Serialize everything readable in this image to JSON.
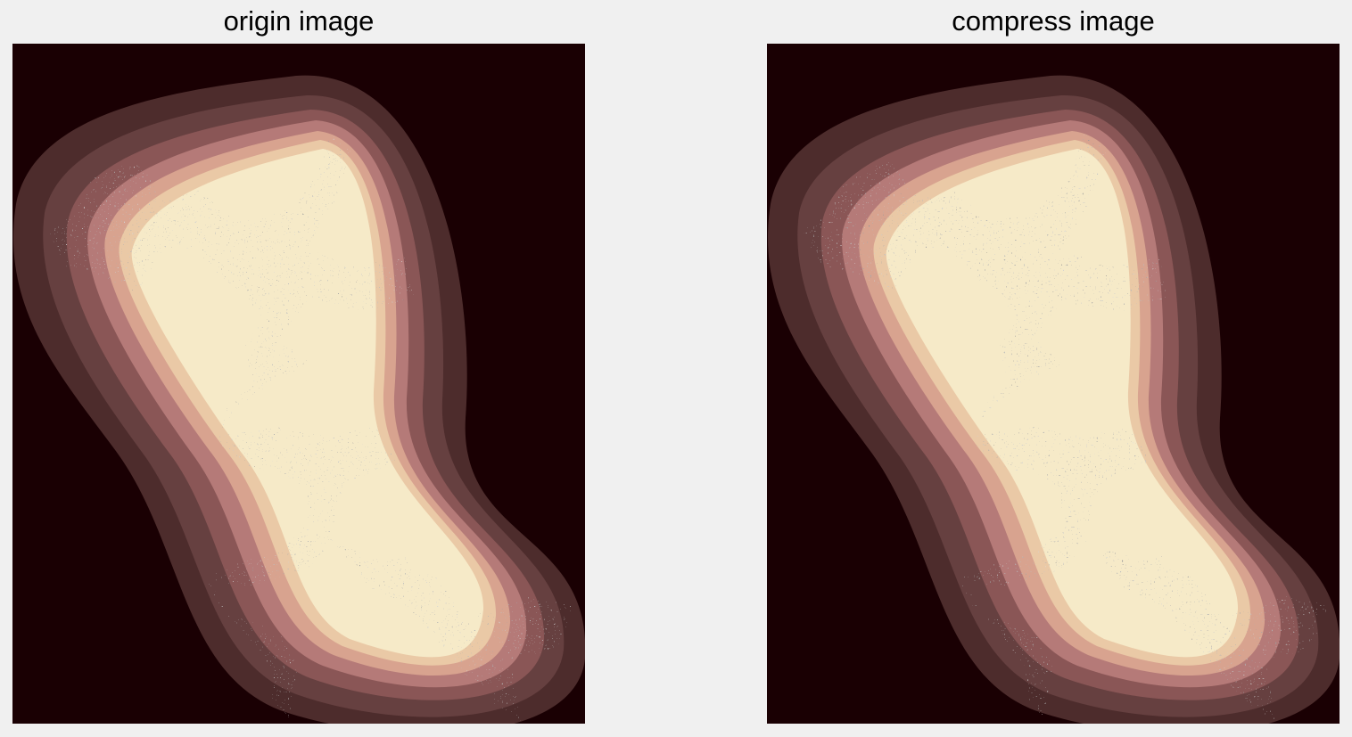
{
  "figure": {
    "panels": [
      {
        "title": "origin image"
      },
      {
        "title": "compress image"
      }
    ]
  },
  "colors": {
    "figure_background": "#f0f0f0",
    "image_background": "#1a0003",
    "band_outer": "#4d2c2c",
    "band_2": "#664040",
    "band_3": "#8a5656",
    "band_4": "#b57a78",
    "band_5": "#d8a38f",
    "band_6": "#eac9a6",
    "band_inner": "#f6eac8",
    "fractal_core": "#fdfbe8",
    "fractal_dark": "#3a1416"
  }
}
